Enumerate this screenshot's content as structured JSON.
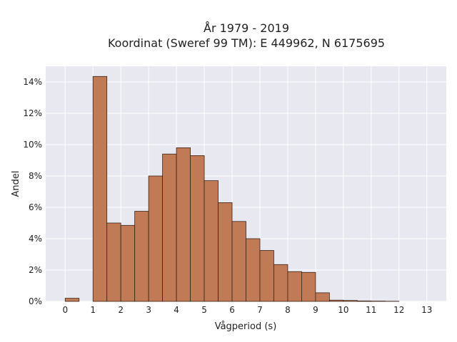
{
  "chart_data": {
    "type": "bar",
    "title": "År 1979 - 2019",
    "subtitle": "Koordinat (Sweref 99 TM): E 449962, N 6175695",
    "xlabel": "Vågperiod (s)",
    "ylabel": "Andel",
    "x_ticks": [
      0,
      1,
      2,
      3,
      4,
      5,
      6,
      7,
      8,
      9,
      10,
      11,
      12,
      13
    ],
    "y_ticks": [
      0,
      2,
      4,
      6,
      8,
      10,
      12,
      14
    ],
    "y_tick_suffix": "%",
    "xlim": [
      -0.7,
      13.7
    ],
    "ylim": [
      0,
      15
    ],
    "bin_width": 0.5,
    "bins": [
      {
        "start": 0.0,
        "value": 0.2
      },
      {
        "start": 1.0,
        "value": 14.35
      },
      {
        "start": 1.5,
        "value": 5.0
      },
      {
        "start": 2.0,
        "value": 4.85
      },
      {
        "start": 2.5,
        "value": 5.75
      },
      {
        "start": 3.0,
        "value": 8.0
      },
      {
        "start": 3.5,
        "value": 9.4
      },
      {
        "start": 4.0,
        "value": 9.8
      },
      {
        "start": 4.5,
        "value": 9.3
      },
      {
        "start": 5.0,
        "value": 7.7
      },
      {
        "start": 5.5,
        "value": 6.3
      },
      {
        "start": 6.0,
        "value": 5.1
      },
      {
        "start": 6.5,
        "value": 4.0
      },
      {
        "start": 7.0,
        "value": 3.25
      },
      {
        "start": 7.5,
        "value": 2.35
      },
      {
        "start": 8.0,
        "value": 1.9
      },
      {
        "start": 8.5,
        "value": 1.85
      },
      {
        "start": 9.0,
        "value": 0.55
      },
      {
        "start": 9.5,
        "value": 0.08
      },
      {
        "start": 10.0,
        "value": 0.06
      },
      {
        "start": 10.5,
        "value": 0.03
      },
      {
        "start": 11.0,
        "value": 0.02
      },
      {
        "start": 11.5,
        "value": 0.01
      }
    ],
    "grid": true,
    "colors": {
      "bar_fill": "#c07a55",
      "bar_stroke": "#3a2418",
      "plot_background": "#e8e8f0",
      "grid": "#ffffff"
    }
  }
}
